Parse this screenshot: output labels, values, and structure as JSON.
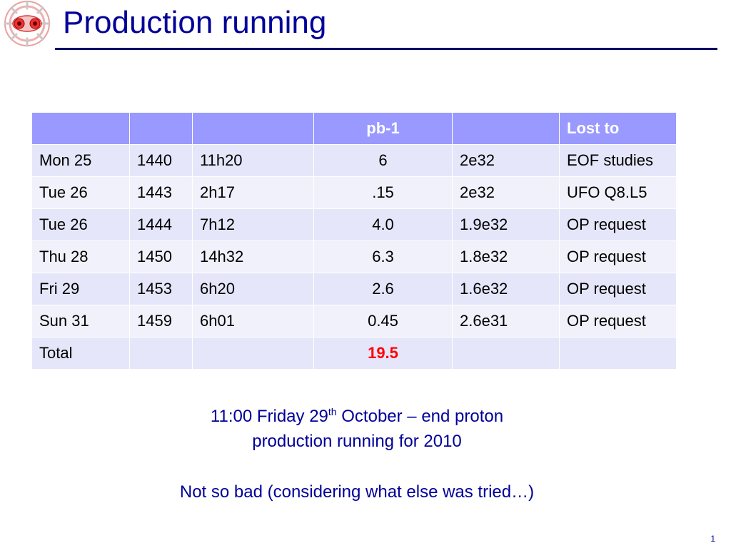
{
  "slide": {
    "title": "Production running",
    "page_number": "1"
  },
  "table": {
    "headers": [
      "",
      "",
      "",
      "pb-1",
      "",
      "Lost to"
    ],
    "rows": [
      [
        "Mon 25",
        "1440",
        "11h20",
        "6",
        "2e32",
        "EOF studies"
      ],
      [
        "Tue 26",
        "1443",
        "2h17",
        ".15",
        "2e32",
        "UFO Q8.L5"
      ],
      [
        "Tue 26",
        "1444",
        "7h12",
        "4.0",
        "1.9e32",
        "OP request"
      ],
      [
        "Thu 28",
        "1450",
        "14h32",
        "6.3",
        "1.8e32",
        "OP request"
      ],
      [
        "Fri 29",
        "1453",
        "6h20",
        "2.6",
        "1.6e32",
        "OP request"
      ],
      [
        "Sun 31",
        "1459",
        "6h01",
        "0.45",
        "2.6e31",
        "OP request"
      ],
      [
        "Total",
        "",
        "",
        "19.5",
        "",
        ""
      ]
    ]
  },
  "notes": {
    "line1_before": "11:00 Friday 29",
    "line1_sup": "th",
    "line1_after": " October – end proton",
    "line2": "production running for 2010",
    "line3": "Not so bad (considering what else was tried…)"
  },
  "colors": {
    "title": "#000099",
    "header_bg": "#9999ff",
    "row_bg": "#e6e6fa",
    "highlight": "#ff0000"
  },
  "icons": {
    "logo": "lhc-logo-icon"
  }
}
